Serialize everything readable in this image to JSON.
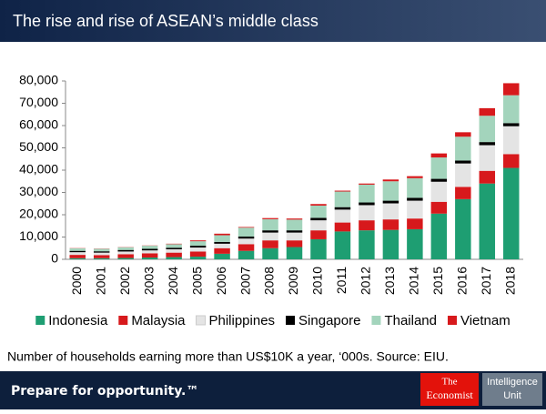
{
  "chart_data": {
    "type": "stacked-bar",
    "title": "The rise and rise of ASEAN’s middle class",
    "note": "Number of households earning more than US$10K a year, ‘000s. Source: EIU.",
    "categories": [
      "2000",
      "2001",
      "2002",
      "2003",
      "2004",
      "2005",
      "2006",
      "2007",
      "2008",
      "2009",
      "2010",
      "2011",
      "2012",
      "2013",
      "2014",
      "2015",
      "2016",
      "2017",
      "2018"
    ],
    "series": [
      {
        "name": "Indonesia",
        "color": "#1e9e72",
        "values": [
          500,
          500,
          600,
          800,
          1000,
          1200,
          2500,
          3800,
          5000,
          5500,
          9000,
          12500,
          13000,
          13200,
          13500,
          20500,
          27000,
          34000,
          41000
        ]
      },
      {
        "name": "Malaysia",
        "color": "#d7191c",
        "values": [
          1500,
          1400,
          1700,
          1900,
          2000,
          2300,
          2500,
          3000,
          3500,
          3000,
          4000,
          4000,
          4500,
          4700,
          4800,
          5300,
          5500,
          5700,
          6200
        ]
      },
      {
        "name": "Philippines",
        "color": "#e4e4e4",
        "values": [
          1200,
          1100,
          1200,
          1300,
          1500,
          1800,
          2000,
          2500,
          3500,
          3500,
          4500,
          5800,
          6800,
          7200,
          8000,
          9000,
          10500,
          11500,
          12500
        ]
      },
      {
        "name": "Singapore",
        "color": "#000000",
        "values": [
          600,
          600,
          700,
          700,
          700,
          800,
          800,
          900,
          1000,
          1000,
          1100,
          1100,
          1200,
          1200,
          1300,
          1300,
          1300,
          1400,
          1400
        ]
      },
      {
        "name": "Thailand",
        "color": "#a3d4bc",
        "values": [
          1100,
          1100,
          1200,
          1400,
          1600,
          2000,
          3000,
          4000,
          5000,
          4800,
          5500,
          7000,
          8000,
          8700,
          8800,
          9600,
          10700,
          11800,
          12500
        ]
      },
      {
        "name": "Vietnam",
        "color": "#d7191c",
        "values": [
          100,
          100,
          100,
          100,
          200,
          400,
          700,
          300,
          500,
          500,
          700,
          400,
          500,
          800,
          900,
          1800,
          2000,
          3400,
          5400
        ]
      }
    ],
    "ylim": [
      0,
      80000
    ],
    "yticks": [
      0,
      {
        "value": 10000,
        "label": "10,000"
      },
      {
        "value": 20000,
        "label": "20,000"
      },
      {
        "value": 30000,
        "label": "30,000"
      },
      {
        "value": 40000,
        "label": "40,000"
      },
      {
        "value": 50000,
        "label": "50,000"
      },
      {
        "value": 60000,
        "label": "60,000"
      },
      {
        "value": 70000,
        "label": "70,000"
      },
      {
        "value": 80000,
        "label": "80,000"
      }
    ],
    "grid": false
  },
  "footer": {
    "tagline": "Prepare for opportunity.™",
    "logo": [
      "The",
      "Economist"
    ],
    "unit": [
      "Intelligence",
      "Unit"
    ]
  }
}
